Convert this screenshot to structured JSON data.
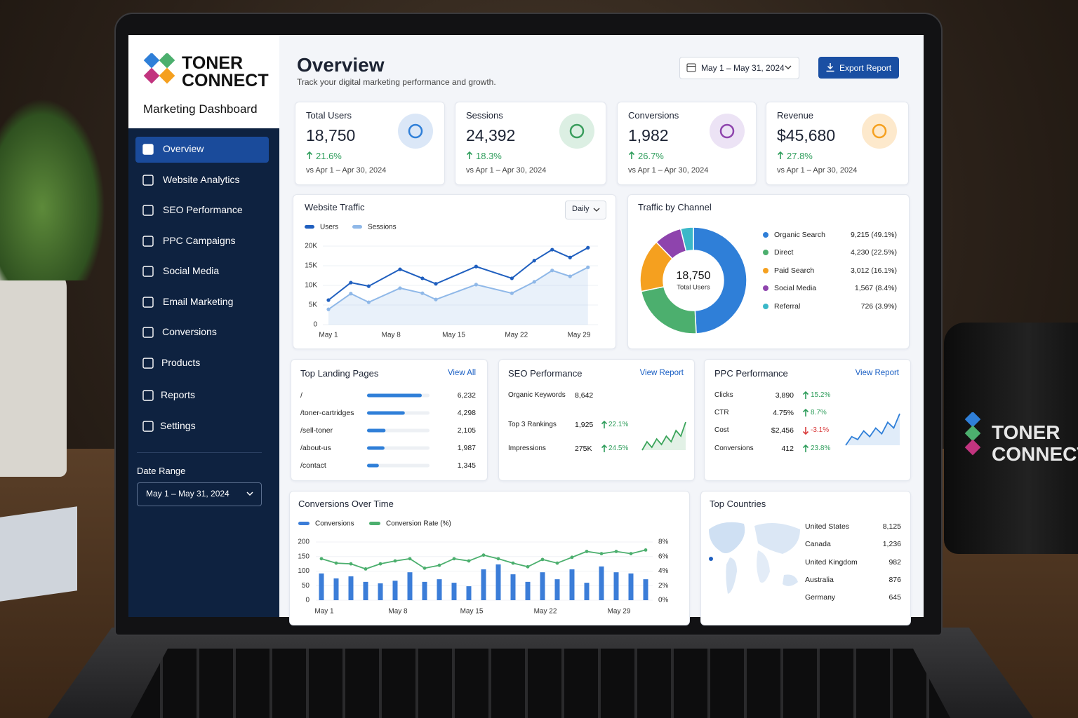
{
  "brand": {
    "name": [
      "TONER",
      "CONNECT"
    ],
    "subtitle": "Marketing Dashboard"
  },
  "nav": [
    "Overview",
    "Website Analytics",
    "SEO Performance",
    "PPC Campaigns",
    "Social Media",
    "Email Marketing",
    "Conversions",
    "Products",
    "Reports",
    "Settings"
  ],
  "date_range": {
    "label": "Date Range",
    "value": "May 1 – May 31, 2024"
  },
  "header": {
    "title": "Overview",
    "subtitle": "Track your digital marketing performance and growth.",
    "date": "May 1 – May 31, 2024",
    "export": "Export Report"
  },
  "kpis": [
    {
      "label": "Total Users",
      "value": "18,750",
      "change": "21.6%",
      "compare": "vs Apr 1 – Apr 30, 2024"
    },
    {
      "label": "Sessions",
      "value": "24,392",
      "change": "18.3%",
      "compare": "vs Apr 1 – Apr 30, 2024"
    },
    {
      "label": "Conversions",
      "value": "1,982",
      "change": "26.7%",
      "compare": "vs Apr 1 – Apr 30, 2024"
    },
    {
      "label": "Revenue",
      "value": "$45,680",
      "change": "27.8%",
      "compare": "vs Apr 1 – Apr 30, 2024"
    }
  ],
  "traffic": {
    "type": "line",
    "title": "Website Traffic",
    "period": "Daily",
    "x": [
      1,
      3.5,
      5.5,
      9,
      11.5,
      13,
      17.5,
      21.5,
      24,
      26,
      28,
      30
    ],
    "xticks": [
      {
        "value": 1,
        "label": "May 1"
      },
      {
        "value": 8,
        "label": "May 8"
      },
      {
        "value": 15,
        "label": "May 15"
      },
      {
        "value": 22,
        "label": "May 22"
      },
      {
        "value": 29,
        "label": "May 29"
      }
    ],
    "series": [
      {
        "name": "Users",
        "color": "#1f5fbf",
        "values": [
          6250,
          10700,
          9800,
          14100,
          11800,
          10400,
          14800,
          11800,
          16300,
          19100,
          17100,
          19600
        ]
      },
      {
        "name": "Sessions",
        "color": "#8fb8e8",
        "values": [
          3900,
          7900,
          5700,
          9300,
          8000,
          6400,
          10200,
          8000,
          10900,
          13800,
          12300,
          14600
        ]
      }
    ],
    "ylim": [
      0,
      20000
    ],
    "yticks": [
      0,
      {
        "value": 5000,
        "label": "5K"
      },
      {
        "value": 10000,
        "label": "10K"
      },
      {
        "value": 15000,
        "label": "15K"
      },
      {
        "value": 20000,
        "label": "20K"
      }
    ]
  },
  "channel": {
    "type": "donut",
    "title": "Traffic by Channel",
    "center_value": "18,750",
    "center_label": "Total Users",
    "categories": [
      "Organic Search",
      "Direct",
      "Paid Search",
      "Social Media",
      "Referral"
    ],
    "values": [
      9215,
      4230,
      3012,
      1567,
      726
    ],
    "value_labels": [
      "9,215 (49.1%)",
      "4,230 (22.5%)",
      "3,012 (16.1%)",
      "1,567 (8.4%)",
      "726 (3.9%)"
    ],
    "colors": [
      "#2f7fd8",
      "#4caf6e",
      "#f5a01f",
      "#8e44ad",
      "#3bb8c8"
    ]
  },
  "landing": {
    "title": "Top Landing Pages",
    "link": "View All",
    "pages": [
      "/",
      "/toner-cartridges",
      "/sell-toner",
      "/about-us",
      "/contact"
    ],
    "values": [
      6232,
      4298,
      2105,
      1987,
      1345
    ],
    "value_labels": [
      "6,232",
      "4,298",
      "2,105",
      "1,987",
      "1,345"
    ]
  },
  "seo": {
    "title": "SEO Performance",
    "link": "View Report",
    "rows": [
      {
        "label": "Organic Keywords",
        "value": "8,642"
      },
      {
        "label": "Top 3 Rankings",
        "value": "1,925",
        "change": "22.1%"
      },
      {
        "label": "Impressions",
        "value": "275K",
        "change": "24.5%"
      }
    ],
    "trend": [
      2,
      5,
      3,
      6,
      4,
      7,
      5,
      9,
      7,
      12
    ]
  },
  "ppc": {
    "title": "PPC Performance",
    "link": "View Report",
    "rows": [
      {
        "label": "Clicks",
        "value": "3,890",
        "change": "15.2%"
      },
      {
        "label": "CTR",
        "value": "4.75%",
        "change": "8.7%"
      },
      {
        "label": "Cost",
        "value": "$2,456",
        "change": "-3.1%"
      },
      {
        "label": "Conversions",
        "value": "412",
        "change": "23.8%"
      }
    ],
    "trend": [
      3,
      6,
      5,
      8,
      6,
      9,
      7,
      11,
      9,
      14
    ]
  },
  "conversions": {
    "type": "bar+line",
    "title": "Conversions Over Time",
    "categories": [
      "May 1",
      null,
      null,
      null,
      null,
      "May 8",
      null,
      null,
      null,
      null,
      "May 15",
      null,
      null,
      null,
      null,
      "May 22",
      null,
      null,
      null,
      null,
      "May 29",
      null,
      null
    ],
    "series": [
      {
        "name": "Conversions",
        "color": "#3b7dd8",
        "values": [
          92,
          75,
          82,
          63,
          58,
          67,
          96,
          63,
          72,
          60,
          48,
          106,
          123,
          89,
          63,
          96,
          72,
          106,
          60,
          116,
          96,
          92,
          72
        ]
      },
      {
        "name": "Conversion Rate (%)",
        "color": "#4caf6e",
        "axis": "y2",
        "values": [
          5.7,
          5.1,
          5.0,
          4.3,
          5.0,
          5.4,
          5.7,
          4.4,
          4.8,
          5.7,
          5.4,
          6.2,
          5.7,
          5.1,
          4.6,
          5.6,
          5.1,
          5.9,
          6.7,
          6.4,
          6.7,
          6.4,
          6.9
        ]
      }
    ],
    "ylim": [
      0,
      200
    ],
    "yticks": [
      0,
      50,
      100,
      150,
      200
    ],
    "y2lim": [
      0,
      8
    ],
    "y2ticks": [
      {
        "value": 0,
        "label": "0%"
      },
      {
        "value": 2,
        "label": "2%"
      },
      {
        "value": 4,
        "label": "4%"
      },
      {
        "value": 6,
        "label": "6%"
      },
      {
        "value": 8,
        "label": "8%"
      }
    ]
  },
  "countries": {
    "title": "Top Countries",
    "rows": [
      [
        "United States",
        "8,125"
      ],
      [
        "Canada",
        "1,236"
      ],
      [
        "United Kingdom",
        "982"
      ],
      [
        "Australia",
        "876"
      ],
      [
        "Germany",
        "645"
      ]
    ]
  }
}
